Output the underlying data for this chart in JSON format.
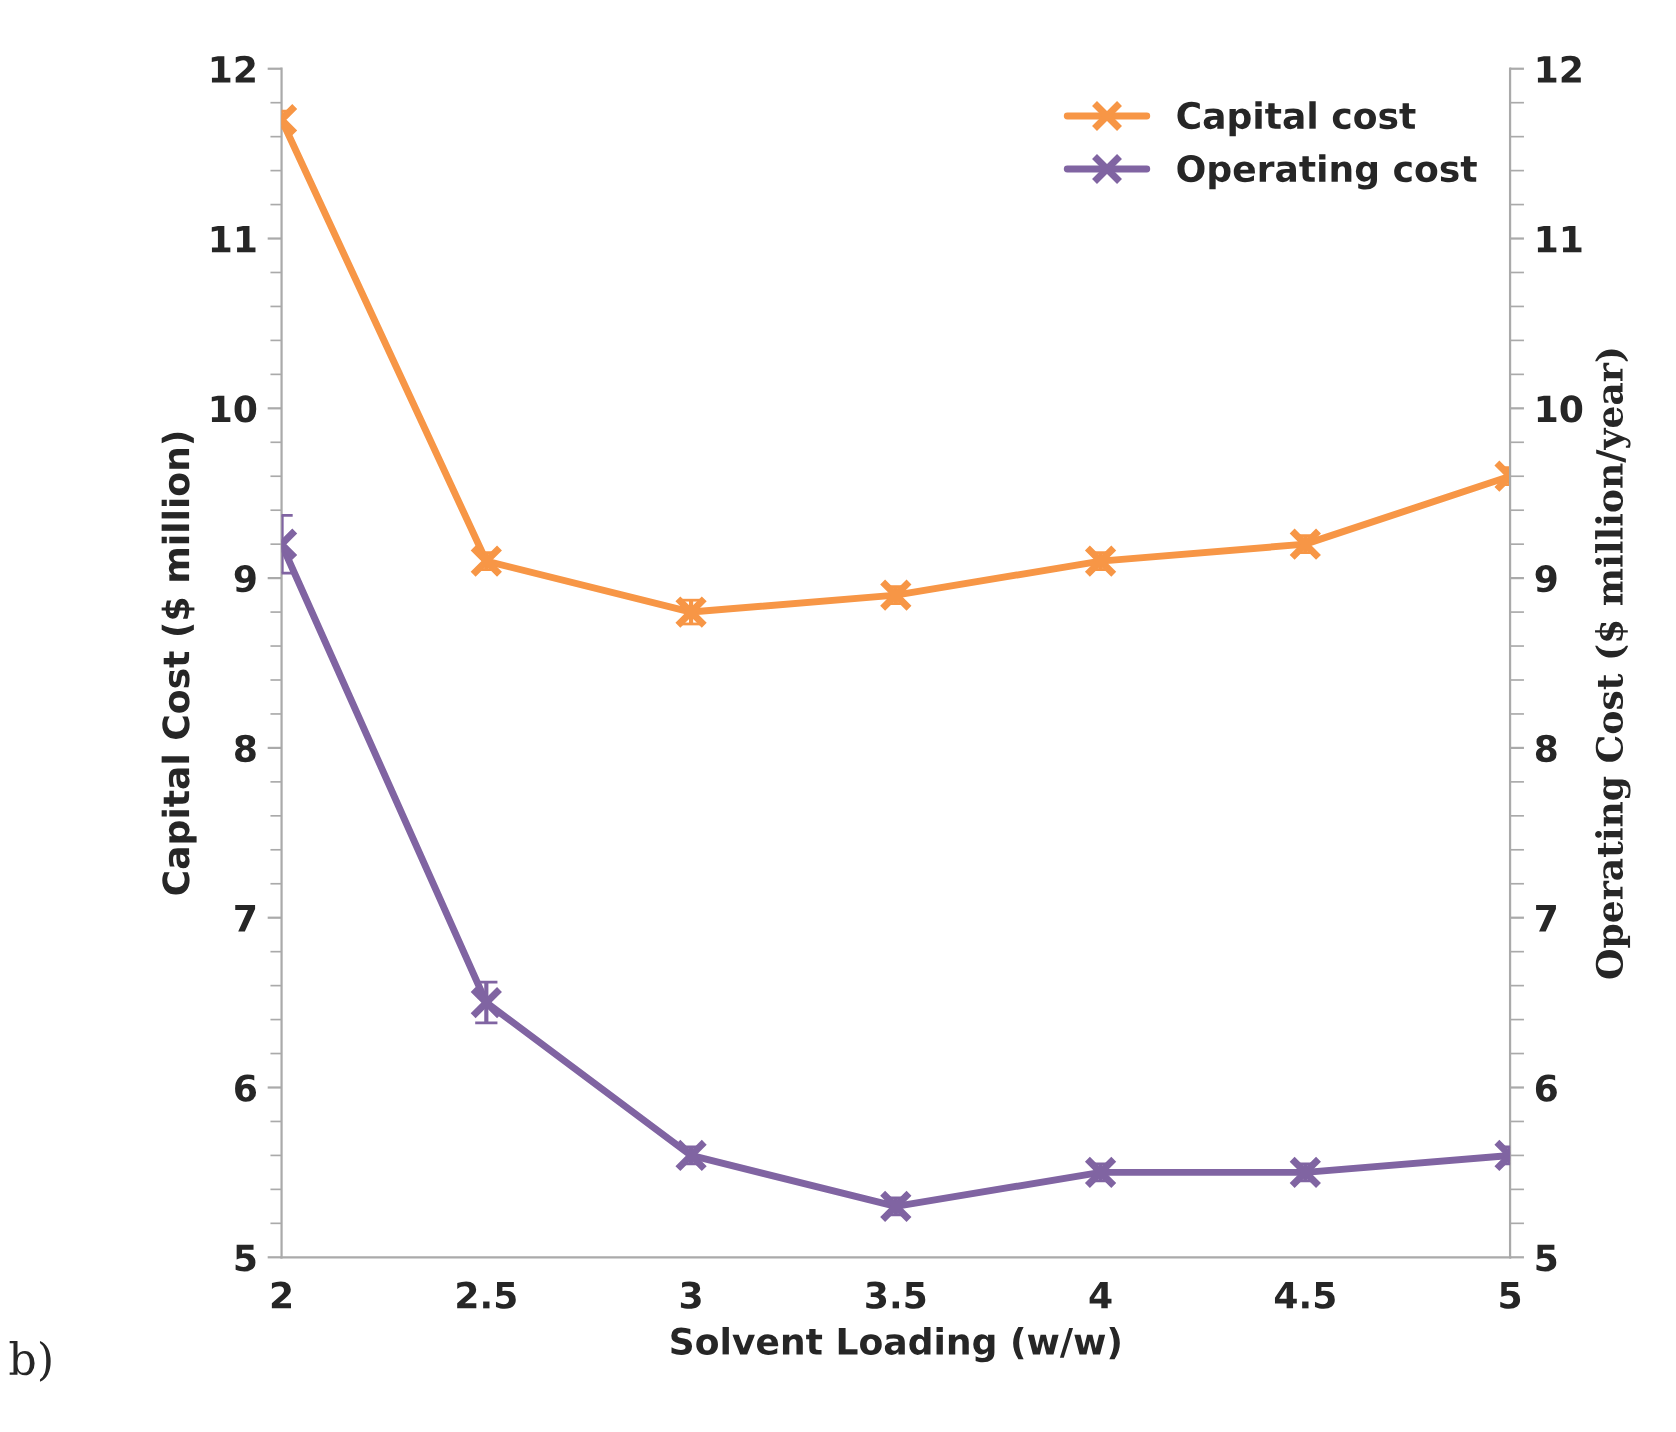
{
  "chart_data": {
    "type": "line",
    "xlabel": "Solvent Loading (w/w)",
    "ylabel": "Capital Cost ($ million)",
    "y2label": "Operating Cost ($ million/year)",
    "x": [
      2,
      2.5,
      3,
      3.5,
      4,
      4.5,
      5
    ],
    "series": [
      {
        "name": "Capital cost",
        "color": "#f79646",
        "values": [
          11.7,
          9.1,
          8.8,
          8.9,
          9.1,
          9.2,
          9.6
        ],
        "errors": [
          0.05,
          0.05,
          0.07,
          0.05,
          0.05,
          0.05,
          0.05
        ]
      },
      {
        "name": "Operating cost",
        "color": "#8064a2",
        "axis": "y2",
        "values": [
          9.2,
          6.5,
          5.6,
          5.3,
          5.5,
          5.5,
          5.6
        ],
        "errors": [
          0.17,
          0.12,
          0.05,
          0.05,
          0.05,
          0.05,
          0.05
        ]
      }
    ],
    "xlim": [
      2,
      5
    ],
    "xticks": [
      2,
      2.5,
      3,
      3.5,
      4,
      4.5,
      5
    ],
    "ylim": [
      5,
      12
    ],
    "yticks": [
      5,
      6,
      7,
      8,
      9,
      10,
      11,
      12
    ],
    "y2lim": [
      5,
      12
    ],
    "y2ticks": [
      5,
      6,
      7,
      8,
      9,
      10,
      11,
      12
    ],
    "annotations": [
      "b)"
    ],
    "marker": "cross",
    "line_style": "solid",
    "legend": "top right",
    "grid": false
  }
}
